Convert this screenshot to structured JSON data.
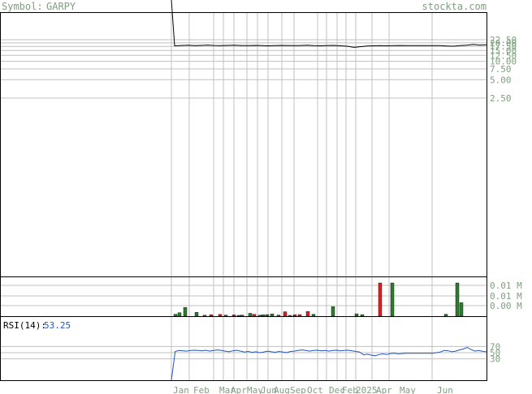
{
  "header": {
    "symbol_label": "Symbol:",
    "symbol": "GARPY",
    "watermark": "stockta.com"
  },
  "colors": {
    "background": "#ffffff",
    "frame": "#000000",
    "grid": "#c0c0c0",
    "price_line": "#000000",
    "label_text": "#7f9f7f",
    "volume_up": "#2e7d2e",
    "volume_down": "#e02020",
    "rsi_line": "#2255bb",
    "rsi_label": "#000000",
    "rsi_value": "#2255bb"
  },
  "chart_data": [
    {
      "type": "line",
      "panel": "price",
      "y_scale": "log",
      "y_ticks": [
        22.5,
        20.0,
        17.5,
        15.0,
        12.5,
        10.0,
        7.5,
        5.0,
        2.5
      ],
      "y_tick_labels": [
        "22.50",
        "20.00",
        "17.50",
        "15.00",
        "12.50",
        "10.00",
        "7.50",
        "5.00",
        "2.50"
      ],
      "x_month_labels": [
        "Jan",
        "Feb",
        "Mar",
        "Apr",
        "May",
        "Jun",
        "Aug",
        "Sep",
        "Oct",
        "Dec",
        "Feb",
        "2025",
        "Apr",
        "May",
        "Jun"
      ],
      "series": [
        {
          "values": [
            60,
            17.9,
            18.1,
            18.3,
            18.0,
            18.2,
            18.4,
            18.1,
            18.0,
            18.2,
            18.3,
            18.1,
            18.0,
            18.2,
            18.1,
            17.9,
            18.0,
            18.2,
            18.1,
            18.0,
            18.1,
            18.3,
            18.0,
            17.9,
            18.1,
            18.2,
            17.9,
            17.6,
            16.9,
            17.3,
            17.8,
            17.9,
            18.0,
            17.9,
            18.0,
            18.1,
            18.0,
            18.0,
            18.0,
            18.0,
            18.0,
            18.0,
            17.8,
            17.6,
            18.0,
            18.3,
            18.8,
            18.4,
            18.6
          ]
        }
      ]
    },
    {
      "type": "bar",
      "panel": "volume",
      "y_tick_labels": [
        "0.01 M",
        "0.01 M",
        "0.00 M"
      ],
      "bars": [
        {
          "v": 0.12,
          "up": true
        },
        {
          "v": 0.22,
          "up": true
        },
        {
          "v": 0.55,
          "up": true
        },
        {
          "v": 0.24,
          "up": true
        },
        {
          "v": 0.06,
          "up": true
        },
        {
          "v": 0.09,
          "up": false
        },
        {
          "v": 0.11,
          "up": false
        },
        {
          "v": 0.07,
          "up": true
        },
        {
          "v": 0.08,
          "up": false
        },
        {
          "v": 0.05,
          "up": true
        },
        {
          "v": 0.07,
          "up": true
        },
        {
          "v": 0.18,
          "up": true
        },
        {
          "v": 0.12,
          "up": false
        },
        {
          "v": 0.06,
          "up": true
        },
        {
          "v": 0.09,
          "up": true
        },
        {
          "v": 0.1,
          "up": true
        },
        {
          "v": 0.14,
          "up": true
        },
        {
          "v": 0.07,
          "up": false
        },
        {
          "v": 0.28,
          "up": false
        },
        {
          "v": 0.05,
          "up": true
        },
        {
          "v": 0.09,
          "up": false
        },
        {
          "v": 0.1,
          "up": false
        },
        {
          "v": 0.3,
          "up": false
        },
        {
          "v": 0.12,
          "up": true
        },
        {
          "v": 0.6,
          "up": true
        },
        {
          "v": 0.15,
          "up": true
        },
        {
          "v": 0.1,
          "up": true
        },
        {
          "v": 2.1,
          "up": false
        },
        {
          "v": 2.1,
          "up": true
        },
        {
          "v": 0.12,
          "up": true
        },
        {
          "v": 2.1,
          "up": true
        },
        {
          "v": 0.85,
          "up": true
        }
      ]
    },
    {
      "type": "line",
      "panel": "rsi",
      "indicator_label": "RSI(14):",
      "indicator_value": "53.25",
      "y_ticks": [
        70,
        50,
        30
      ],
      "y_tick_labels": [
        "70",
        "50",
        "30"
      ],
      "ylim": [
        0,
        100
      ],
      "series": [
        {
          "values": [
            0,
            54,
            57,
            56,
            55,
            57,
            58,
            57,
            56,
            58,
            55,
            57,
            59,
            57,
            55,
            53,
            56,
            58,
            55,
            52,
            54,
            51,
            53,
            50,
            52,
            55,
            53,
            51,
            54,
            52,
            50,
            54,
            55,
            57,
            59,
            57,
            55,
            57,
            58,
            56,
            57,
            55,
            57,
            58,
            56,
            57,
            58,
            56,
            54,
            52,
            43,
            45,
            42,
            40,
            44,
            46,
            44,
            47,
            48,
            46,
            47,
            48,
            48,
            48,
            48,
            48,
            48,
            48,
            48,
            50,
            52,
            57,
            56,
            53,
            55,
            59,
            62,
            67,
            60,
            55,
            57,
            54,
            53
          ]
        }
      ]
    }
  ]
}
